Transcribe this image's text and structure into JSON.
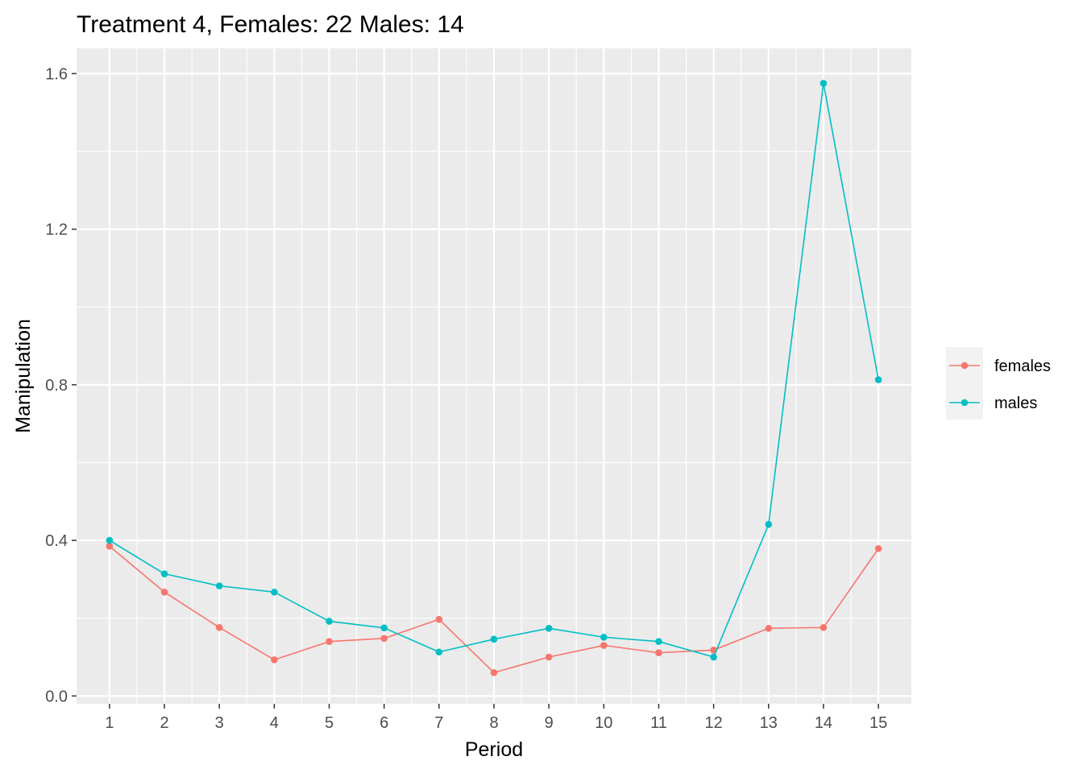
{
  "chart_data": {
    "type": "line",
    "title": "Treatment 4, Females: 22  Males: 14",
    "xlabel": "Period",
    "ylabel": "Manipulation",
    "x": [
      1,
      2,
      3,
      4,
      5,
      6,
      7,
      8,
      9,
      10,
      11,
      12,
      13,
      14,
      15
    ],
    "x_tick_labels": [
      "1",
      "2",
      "3",
      "4",
      "5",
      "6",
      "7",
      "8",
      "9",
      "10",
      "11",
      "12",
      "13",
      "14",
      "15"
    ],
    "y_ticks": [
      0.0,
      0.4,
      0.8,
      1.2,
      1.6
    ],
    "y_tick_labels": [
      "0.0",
      "0.4",
      "0.8",
      "1.2",
      "1.6"
    ],
    "xlim": [
      0.4,
      15.6
    ],
    "ylim": [
      -0.02,
      1.665
    ],
    "grid": true,
    "legend_position": "right",
    "series": [
      {
        "name": "females",
        "color": "#F8766D",
        "values": [
          0.385,
          0.267,
          0.176,
          0.093,
          0.14,
          0.148,
          0.197,
          0.06,
          0.1,
          0.13,
          0.111,
          0.118,
          0.174,
          0.176,
          0.379
        ]
      },
      {
        "name": "males",
        "color": "#00BFC4",
        "values": [
          0.4,
          0.314,
          0.283,
          0.267,
          0.192,
          0.175,
          0.113,
          0.146,
          0.174,
          0.151,
          0.14,
          0.1,
          0.441,
          1.575,
          0.813
        ]
      }
    ]
  }
}
